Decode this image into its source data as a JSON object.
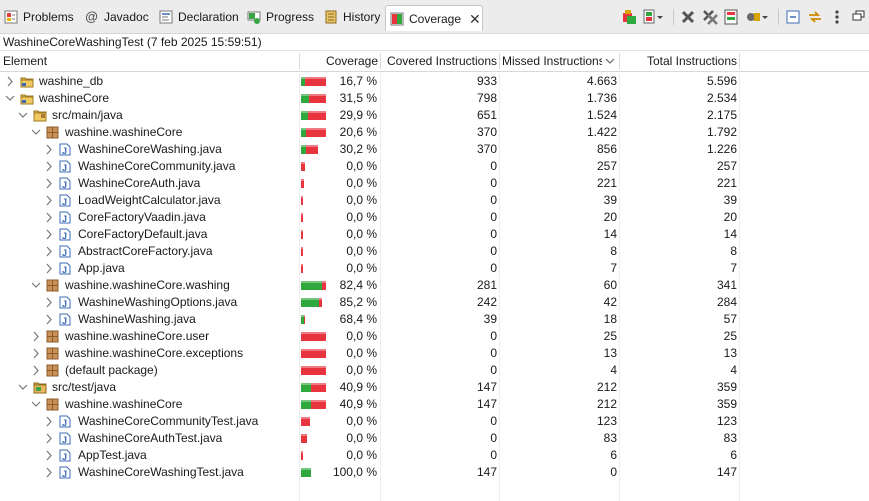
{
  "tabs": [
    {
      "label": "Problems",
      "icon": "problems-icon"
    },
    {
      "label": "Javadoc",
      "icon": "javadoc-icon"
    },
    {
      "label": "Declaration",
      "icon": "declaration-icon"
    },
    {
      "label": "Progress",
      "icon": "progress-icon"
    },
    {
      "label": "History",
      "icon": "history-icon"
    },
    {
      "label": "Coverage",
      "icon": "coverage-icon",
      "active": true
    }
  ],
  "session_label": "WashineCoreWashingTest (7 feb 2025 15:59:51)",
  "columns": {
    "element": "Element",
    "coverage": "Coverage",
    "covered": "Covered Instructions",
    "missed": "Missed Instructions",
    "total": "Total Instructions"
  },
  "colors": {
    "covered_bar": "#2fa83d",
    "missed_bar": "#e8343f"
  },
  "rows": [
    {
      "depth": 0,
      "expanded": false,
      "type": "project",
      "name": "washine_db",
      "coverage": "16,7 %",
      "covered": "933",
      "missed": "4.663",
      "total": "5.596"
    },
    {
      "depth": 0,
      "expanded": true,
      "type": "project",
      "name": "washineCore",
      "coverage": "31,5 %",
      "covered": "798",
      "missed": "1.736",
      "total": "2.534"
    },
    {
      "depth": 1,
      "expanded": true,
      "type": "folder",
      "name": "src/main/java",
      "coverage": "29,9 %",
      "covered": "651",
      "missed": "1.524",
      "total": "2.175"
    },
    {
      "depth": 2,
      "expanded": true,
      "type": "package",
      "name": "washine.washineCore",
      "coverage": "20,6 %",
      "covered": "370",
      "missed": "1.422",
      "total": "1.792"
    },
    {
      "depth": 3,
      "expanded": false,
      "type": "java",
      "name": "WashineCoreWashing.java",
      "coverage": "30,2 %",
      "covered": "370",
      "missed": "856",
      "total": "1.226"
    },
    {
      "depth": 3,
      "expanded": false,
      "type": "java",
      "name": "WashineCoreCommunity.java",
      "coverage": "0,0 %",
      "covered": "0",
      "missed": "257",
      "total": "257"
    },
    {
      "depth": 3,
      "expanded": false,
      "type": "java",
      "name": "WashineCoreAuth.java",
      "coverage": "0,0 %",
      "covered": "0",
      "missed": "221",
      "total": "221"
    },
    {
      "depth": 3,
      "expanded": false,
      "type": "java",
      "name": "LoadWeightCalculator.java",
      "coverage": "0,0 %",
      "covered": "0",
      "missed": "39",
      "total": "39"
    },
    {
      "depth": 3,
      "expanded": false,
      "type": "java",
      "name": "CoreFactoryVaadin.java",
      "coverage": "0,0 %",
      "covered": "0",
      "missed": "20",
      "total": "20"
    },
    {
      "depth": 3,
      "expanded": false,
      "type": "java",
      "name": "CoreFactoryDefault.java",
      "coverage": "0,0 %",
      "covered": "0",
      "missed": "14",
      "total": "14"
    },
    {
      "depth": 3,
      "expanded": false,
      "type": "java",
      "name": "AbstractCoreFactory.java",
      "coverage": "0,0 %",
      "covered": "0",
      "missed": "8",
      "total": "8"
    },
    {
      "depth": 3,
      "expanded": false,
      "type": "java",
      "name": "App.java",
      "coverage": "0,0 %",
      "covered": "0",
      "missed": "7",
      "total": "7"
    },
    {
      "depth": 2,
      "expanded": true,
      "type": "package",
      "name": "washine.washineCore.washing",
      "coverage": "82,4 %",
      "covered": "281",
      "missed": "60",
      "total": "341"
    },
    {
      "depth": 3,
      "expanded": false,
      "type": "java",
      "name": "WashineWashingOptions.java",
      "coverage": "85,2 %",
      "covered": "242",
      "missed": "42",
      "total": "284"
    },
    {
      "depth": 3,
      "expanded": false,
      "type": "java",
      "name": "WashineWashing.java",
      "coverage": "68,4 %",
      "covered": "39",
      "missed": "18",
      "total": "57"
    },
    {
      "depth": 2,
      "expanded": false,
      "type": "package",
      "name": "washine.washineCore.user",
      "coverage": "0,0 %",
      "covered": "0",
      "missed": "25",
      "total": "25"
    },
    {
      "depth": 2,
      "expanded": false,
      "type": "package",
      "name": "washine.washineCore.exceptions",
      "coverage": "0,0 %",
      "covered": "0",
      "missed": "13",
      "total": "13"
    },
    {
      "depth": 2,
      "expanded": false,
      "type": "package",
      "name": "(default package)",
      "coverage": "0,0 %",
      "covered": "0",
      "missed": "4",
      "total": "4"
    },
    {
      "depth": 1,
      "expanded": true,
      "type": "testfolder",
      "name": "src/test/java",
      "coverage": "40,9 %",
      "covered": "147",
      "missed": "212",
      "total": "359"
    },
    {
      "depth": 2,
      "expanded": true,
      "type": "package",
      "name": "washine.washineCore",
      "coverage": "40,9 %",
      "covered": "147",
      "missed": "212",
      "total": "359"
    },
    {
      "depth": 3,
      "expanded": false,
      "type": "java",
      "name": "WashineCoreCommunityTest.java",
      "coverage": "0,0 %",
      "covered": "0",
      "missed": "123",
      "total": "123"
    },
    {
      "depth": 3,
      "expanded": false,
      "type": "java",
      "name": "WashineCoreAuthTest.java",
      "coverage": "0,0 %",
      "covered": "0",
      "missed": "83",
      "total": "83"
    },
    {
      "depth": 3,
      "expanded": false,
      "type": "java",
      "name": "AppTest.java",
      "coverage": "0,0 %",
      "covered": "0",
      "missed": "6",
      "total": "6"
    },
    {
      "depth": 3,
      "expanded": false,
      "type": "java",
      "name": "WashineCoreWashingTest.java",
      "coverage": "100,0 %",
      "covered": "147",
      "missed": "0",
      "total": "147"
    }
  ]
}
